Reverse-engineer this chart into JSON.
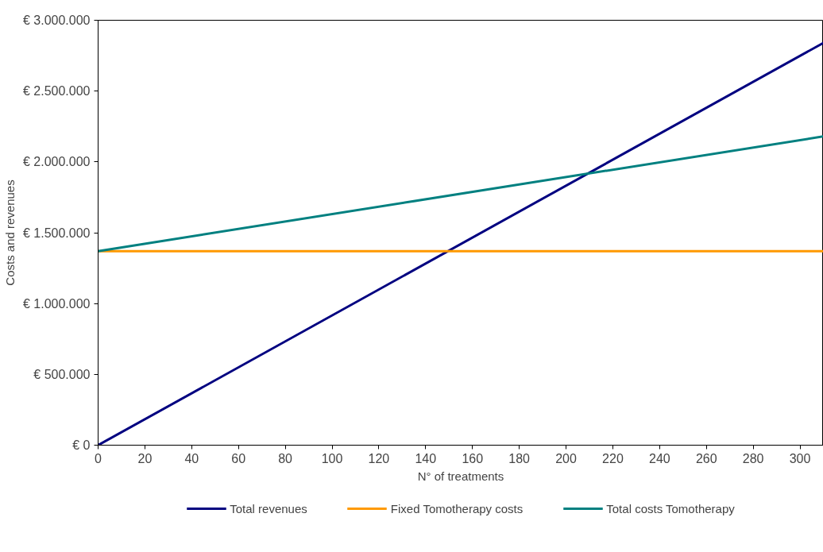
{
  "chart_data": {
    "type": "line",
    "xlabel": "N° of treatments",
    "ylabel": "Costs and revenues",
    "x": [
      0,
      310
    ],
    "series": [
      {
        "name": "Total revenues",
        "color": "#000080",
        "values": [
          0,
          2840000
        ]
      },
      {
        "name": "Fixed Tomotherapy costs",
        "color": "#ff9900",
        "values": [
          1370000,
          1370000
        ]
      },
      {
        "name": "Total costs Tomotherapy",
        "color": "#008080",
        "values": [
          1370000,
          2180000
        ]
      }
    ],
    "xlim": [
      0,
      310
    ],
    "xticks": [
      0,
      20,
      40,
      60,
      80,
      100,
      120,
      140,
      160,
      180,
      200,
      220,
      240,
      260,
      280,
      300
    ],
    "ylim": [
      0,
      3000000
    ],
    "yticks": [
      {
        "value": 0,
        "label": "€ 0"
      },
      {
        "value": 500000,
        "label": "€ 500.000"
      },
      {
        "value": 1000000,
        "label": "€ 1.000.000"
      },
      {
        "value": 1500000,
        "label": "€ 1.500.000"
      },
      {
        "value": 2000000,
        "label": "€ 2.000.000"
      },
      {
        "value": 2500000,
        "label": "€ 2.500.000"
      },
      {
        "value": 3000000,
        "label": "€ 3.000.000"
      }
    ],
    "grid": false,
    "legend": "bottom",
    "marker": "none",
    "line_style": "solid"
  }
}
